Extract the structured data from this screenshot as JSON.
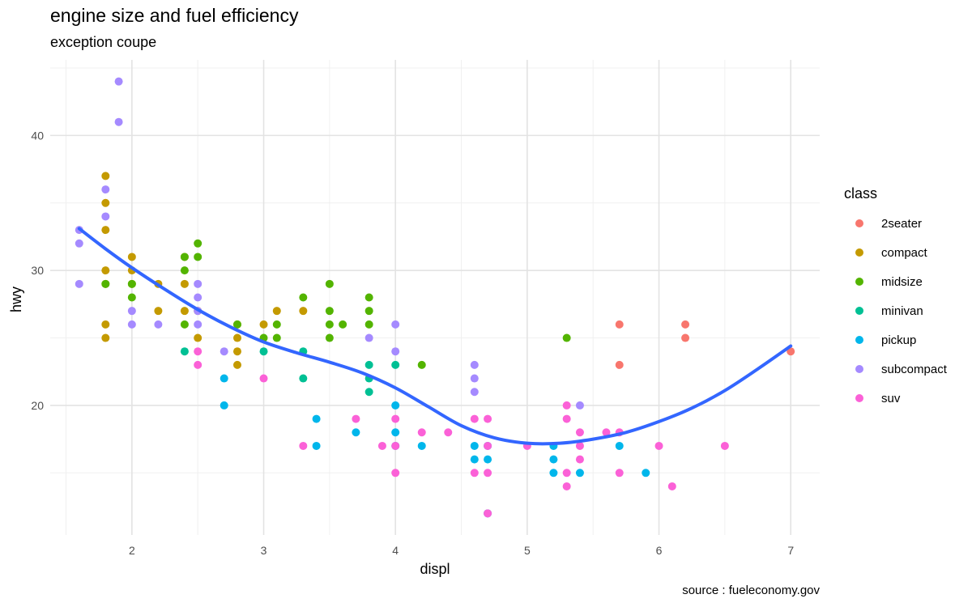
{
  "chart_data": {
    "type": "scatter",
    "title": "engine size and fuel efficiency",
    "subtitle": "exception coupe",
    "caption": "source : fueleconomy.gov",
    "xlabel": "displ",
    "ylabel": "hwy",
    "xlim": [
      1.38,
      7.22
    ],
    "ylim": [
      10.4,
      45.6
    ],
    "xticks": [
      2,
      3,
      4,
      5,
      6,
      7
    ],
    "yticks": [
      20,
      30,
      40
    ],
    "grid": true,
    "legend": {
      "title": "class",
      "position": "right"
    },
    "series": [
      {
        "name": "2seater",
        "color": "#F8766D",
        "points": [
          [
            5.7,
            26
          ],
          [
            5.7,
            23
          ],
          [
            6.2,
            26
          ],
          [
            6.2,
            25
          ],
          [
            7.0,
            24
          ]
        ]
      },
      {
        "name": "compact",
        "color": "#C49A00",
        "points": [
          [
            1.8,
            37
          ],
          [
            1.8,
            35
          ],
          [
            1.8,
            33
          ],
          [
            1.8,
            30
          ],
          [
            1.8,
            29
          ],
          [
            1.8,
            26
          ],
          [
            1.8,
            25
          ],
          [
            2.0,
            31
          ],
          [
            2.0,
            30
          ],
          [
            2.0,
            29
          ],
          [
            2.2,
            29
          ],
          [
            2.2,
            27
          ],
          [
            2.4,
            31
          ],
          [
            2.4,
            29
          ],
          [
            2.4,
            27
          ],
          [
            2.5,
            27
          ],
          [
            2.5,
            25
          ],
          [
            2.8,
            26
          ],
          [
            2.8,
            25
          ],
          [
            2.8,
            24
          ],
          [
            2.8,
            23
          ],
          [
            3.0,
            26
          ],
          [
            3.1,
            27
          ],
          [
            3.3,
            27
          ]
        ]
      },
      {
        "name": "midsize",
        "color": "#53B400",
        "points": [
          [
            1.8,
            29
          ],
          [
            2.0,
            29
          ],
          [
            2.0,
            28
          ],
          [
            2.4,
            31
          ],
          [
            2.4,
            30
          ],
          [
            2.4,
            26
          ],
          [
            2.5,
            32
          ],
          [
            2.5,
            31
          ],
          [
            2.8,
            26
          ],
          [
            3.0,
            25
          ],
          [
            3.1,
            26
          ],
          [
            3.1,
            25
          ],
          [
            3.3,
            28
          ],
          [
            3.5,
            29
          ],
          [
            3.5,
            27
          ],
          [
            3.5,
            26
          ],
          [
            3.5,
            25
          ],
          [
            3.6,
            26
          ],
          [
            3.8,
            28
          ],
          [
            3.8,
            27
          ],
          [
            3.8,
            26
          ],
          [
            4.2,
            23
          ],
          [
            5.3,
            25
          ]
        ]
      },
      {
        "name": "minivan",
        "color": "#00C094",
        "points": [
          [
            2.4,
            24
          ],
          [
            3.0,
            24
          ],
          [
            3.3,
            24
          ],
          [
            3.3,
            22
          ],
          [
            3.8,
            23
          ],
          [
            3.8,
            22
          ],
          [
            3.8,
            21
          ],
          [
            4.0,
            23
          ]
        ]
      },
      {
        "name": "pickup",
        "color": "#00B6EB",
        "points": [
          [
            2.7,
            22
          ],
          [
            2.7,
            20
          ],
          [
            3.4,
            19
          ],
          [
            3.4,
            17
          ],
          [
            3.7,
            18
          ],
          [
            4.0,
            20
          ],
          [
            4.0,
            18
          ],
          [
            4.0,
            17
          ],
          [
            4.2,
            17
          ],
          [
            4.6,
            17
          ],
          [
            4.6,
            16
          ],
          [
            4.7,
            17
          ],
          [
            4.7,
            16
          ],
          [
            4.7,
            12
          ],
          [
            5.2,
            17
          ],
          [
            5.2,
            16
          ],
          [
            5.2,
            15
          ],
          [
            5.4,
            15
          ],
          [
            5.7,
            17
          ],
          [
            5.9,
            15
          ]
        ]
      },
      {
        "name": "subcompact",
        "color": "#A58AFF",
        "points": [
          [
            1.6,
            33
          ],
          [
            1.6,
            32
          ],
          [
            1.6,
            29
          ],
          [
            1.8,
            36
          ],
          [
            1.8,
            34
          ],
          [
            1.9,
            44
          ],
          [
            1.9,
            41
          ],
          [
            2.0,
            27
          ],
          [
            2.0,
            26
          ],
          [
            2.2,
            26
          ],
          [
            2.5,
            29
          ],
          [
            2.5,
            28
          ],
          [
            2.5,
            27
          ],
          [
            2.5,
            26
          ],
          [
            2.7,
            24
          ],
          [
            3.8,
            25
          ],
          [
            4.0,
            26
          ],
          [
            4.0,
            24
          ],
          [
            4.6,
            23
          ],
          [
            4.6,
            22
          ],
          [
            4.6,
            21
          ],
          [
            5.4,
            20
          ]
        ]
      },
      {
        "name": "suv",
        "color": "#FB61D7",
        "points": [
          [
            2.5,
            24
          ],
          [
            2.5,
            23
          ],
          [
            3.0,
            22
          ],
          [
            3.3,
            17
          ],
          [
            3.7,
            19
          ],
          [
            3.9,
            17
          ],
          [
            4.0,
            19
          ],
          [
            4.0,
            17
          ],
          [
            4.0,
            15
          ],
          [
            4.2,
            18
          ],
          [
            4.4,
            18
          ],
          [
            4.6,
            19
          ],
          [
            4.6,
            15
          ],
          [
            4.7,
            19
          ],
          [
            4.7,
            17
          ],
          [
            4.7,
            15
          ],
          [
            4.7,
            12
          ],
          [
            5.0,
            17
          ],
          [
            5.3,
            20
          ],
          [
            5.3,
            19
          ],
          [
            5.3,
            15
          ],
          [
            5.3,
            14
          ],
          [
            5.4,
            18
          ],
          [
            5.4,
            17
          ],
          [
            5.4,
            16
          ],
          [
            5.6,
            18
          ],
          [
            5.7,
            18
          ],
          [
            5.7,
            15
          ],
          [
            6.0,
            17
          ],
          [
            6.1,
            14
          ],
          [
            6.5,
            17
          ]
        ]
      }
    ],
    "smooth": {
      "color": "#3366FF",
      "points": [
        [
          1.6,
          33.1
        ],
        [
          1.8,
          31.6
        ],
        [
          2.0,
          30.2
        ],
        [
          2.25,
          28.6
        ],
        [
          2.5,
          27.1
        ],
        [
          2.75,
          25.8
        ],
        [
          3.0,
          24.7
        ],
        [
          3.25,
          23.9
        ],
        [
          3.5,
          23.2
        ],
        [
          3.75,
          22.4
        ],
        [
          4.0,
          21.3
        ],
        [
          4.25,
          19.9
        ],
        [
          4.5,
          18.5
        ],
        [
          4.75,
          17.6
        ],
        [
          5.0,
          17.2
        ],
        [
          5.25,
          17.2
        ],
        [
          5.5,
          17.5
        ],
        [
          5.75,
          18.0
        ],
        [
          6.0,
          18.8
        ],
        [
          6.25,
          19.8
        ],
        [
          6.5,
          21.1
        ],
        [
          6.75,
          22.7
        ],
        [
          7.0,
          24.4
        ]
      ]
    }
  }
}
